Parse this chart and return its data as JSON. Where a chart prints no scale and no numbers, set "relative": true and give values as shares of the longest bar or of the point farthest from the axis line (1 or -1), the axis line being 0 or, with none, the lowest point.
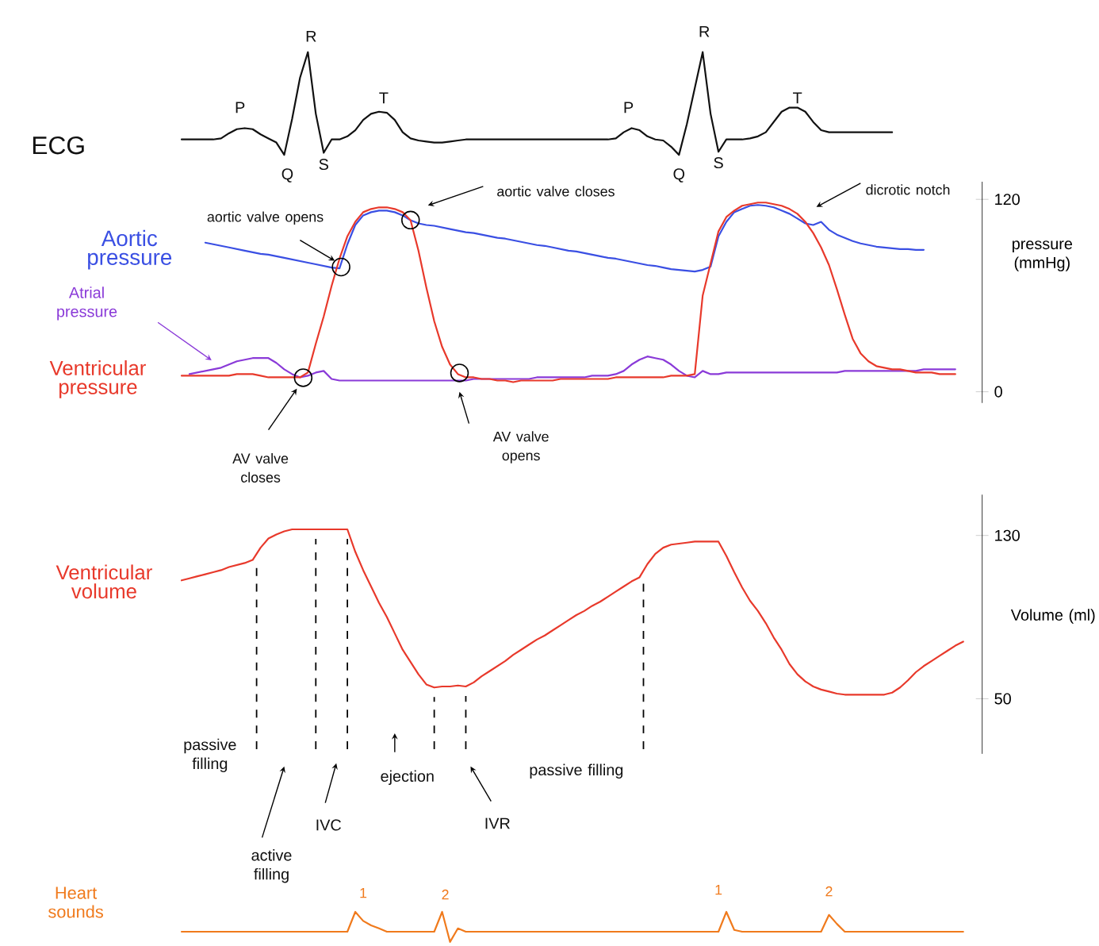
{
  "chart_data": [
    {
      "type": "line",
      "relative": true,
      "categories": [
        null,
        null,
        null,
        null,
        null,
        null,
        null,
        null,
        null,
        null,
        null,
        null,
        null,
        null,
        null,
        null,
        null,
        null,
        null,
        null,
        null,
        null,
        null,
        null,
        null,
        null,
        null,
        null,
        null,
        null,
        null,
        null,
        null,
        null,
        null,
        null,
        null,
        null,
        null,
        null,
        null,
        null,
        null,
        null,
        null,
        null,
        null,
        null,
        null,
        null,
        null,
        null,
        null,
        null,
        null,
        null,
        null,
        null,
        null,
        null,
        null,
        null,
        null,
        null,
        null,
        null,
        null,
        null,
        null,
        null,
        null,
        null,
        null,
        null,
        null,
        null,
        null,
        null,
        null,
        null,
        null,
        null,
        null,
        null,
        null,
        null,
        null,
        null,
        null,
        null,
        null,
        null,
        null,
        null,
        null,
        null,
        null,
        null,
        null,
        null,
        null
      ],
      "series": [
        {
          "name": "ECG",
          "color": "#111111",
          "values": [
            null,
            0.15,
            0.15,
            0.15,
            0.15,
            0.15,
            0.16,
            0.21,
            0.25,
            0.26,
            0.25,
            0.2,
            0.16,
            0.12,
            0,
            0.35,
            0.75,
            1,
            0.4,
            0.02,
            0.15,
            0.15,
            0.18,
            0.24,
            0.34,
            0.4,
            0.42,
            0.41,
            0.34,
            0.22,
            0.16,
            0.14,
            0.13,
            0.12,
            0.12,
            0.13,
            0.14,
            0.15,
            0.15,
            0.15,
            0.15,
            0.15,
            0.15,
            0.15,
            0.15,
            0.15,
            0.15,
            0.15,
            0.15,
            0.15,
            0.15,
            0.15,
            0.15,
            0.15,
            0.15,
            0.15,
            0.16,
            0.22,
            0.26,
            0.24,
            0.18,
            0.15,
            0.14,
            0.08,
            0,
            0.3,
            0.65,
            1,
            0.4,
            0.03,
            0.15,
            0.15,
            0.15,
            0.16,
            0.18,
            0.22,
            0.32,
            0.42,
            0.46,
            0.46,
            0.42,
            0.32,
            0.24,
            0.22,
            0.22,
            0.22,
            0.22,
            0.22,
            0.22,
            0.22,
            0.22,
            0.22,
            null,
            null,
            null,
            null,
            null,
            null,
            null,
            null,
            null
          ]
        }
      ],
      "annotations": [
        "P",
        "Q",
        "R",
        "S",
        "T",
        "P",
        "Q",
        "R",
        "S",
        "T"
      ]
    },
    {
      "type": "line",
      "ylim": [
        -7,
        131
      ],
      "yticks": [
        0,
        120
      ],
      "ylabel": "pressure (mmHg)",
      "tick_labels": "y",
      "categories": [
        null,
        null,
        null,
        null,
        null,
        null,
        null,
        null,
        null,
        null,
        null,
        null,
        null,
        null,
        null,
        null,
        null,
        null,
        null,
        null,
        null,
        null,
        null,
        null,
        null,
        null,
        null,
        null,
        null,
        null,
        null,
        null,
        null,
        null,
        null,
        null,
        null,
        null,
        null,
        null,
        null,
        null,
        null,
        null,
        null,
        null,
        null,
        null,
        null,
        null,
        null,
        null,
        null,
        null,
        null,
        null,
        null,
        null,
        null,
        null,
        null,
        null,
        null,
        null,
        null,
        null,
        null,
        null,
        null,
        null,
        null,
        null,
        null,
        null,
        null,
        null,
        null,
        null,
        null,
        null,
        null,
        null,
        null,
        null,
        null,
        null,
        null,
        null,
        null,
        null,
        null,
        null,
        null,
        null,
        null,
        null,
        null,
        null,
        null,
        null,
        null
      ],
      "series": [
        {
          "name": "Aortic pressure",
          "color": "#3a4fe3",
          "values": [
            null,
            null,
            null,
            null,
            93,
            92,
            91,
            90,
            89,
            88,
            87,
            86,
            85.5,
            84.5,
            83.5,
            82.5,
            81.5,
            80.5,
            79.5,
            78.5,
            77.5,
            77,
            92,
            104,
            110,
            112,
            113,
            113,
            112,
            110,
            107,
            105,
            104,
            103.5,
            102.5,
            101.5,
            100.5,
            99.5,
            99,
            98,
            97,
            96,
            95.5,
            94.5,
            93.5,
            92.5,
            91.5,
            91,
            90,
            89,
            88,
            87.5,
            86.5,
            85.5,
            84.5,
            83.5,
            83,
            82,
            81,
            80,
            79,
            78.5,
            77.5,
            76.5,
            76,
            75.5,
            75,
            76,
            78,
            97,
            106,
            112,
            114,
            116,
            116.5,
            116,
            115,
            113,
            111,
            108,
            105,
            104,
            106,
            101,
            98,
            96,
            94,
            92.5,
            91.5,
            90.5,
            90,
            89.5,
            89,
            89,
            88.5,
            88.5,
            null,
            null,
            null,
            null,
            null
          ]
        },
        {
          "name": "Atrial pressure",
          "color": "#8a3ad8",
          "values": [
            null,
            null,
            11,
            12,
            13,
            14,
            15,
            17,
            19,
            20,
            21,
            21,
            21,
            18,
            14,
            11,
            9,
            10,
            12,
            13,
            8,
            7,
            7,
            7,
            7,
            7,
            7,
            7,
            7,
            7,
            7,
            7,
            7,
            7,
            7,
            7,
            7,
            7,
            8,
            8,
            8,
            8,
            8,
            8,
            8,
            8,
            9,
            9,
            9,
            9,
            9,
            9,
            9,
            10,
            10,
            10,
            11,
            13,
            17,
            20,
            22,
            21,
            20,
            17,
            13,
            10,
            9,
            13,
            11,
            11,
            12,
            12,
            12,
            12,
            12,
            12,
            12,
            12,
            12,
            12,
            12,
            12,
            12,
            12,
            12,
            13,
            13,
            13,
            13,
            13,
            13,
            13,
            13,
            13,
            13,
            14,
            14,
            14,
            14,
            14,
            null
          ]
        },
        {
          "name": "Ventricular pressure",
          "color": "#e8392b",
          "values": [
            null,
            10,
            10,
            10,
            10,
            10,
            10,
            10,
            11,
            11,
            11,
            10,
            9,
            9,
            9,
            9,
            9,
            12,
            30,
            47,
            66,
            83,
            97,
            106,
            112,
            114,
            115,
            115,
            114,
            112,
            107,
            88,
            65,
            44,
            28,
            17,
            11,
            9,
            9,
            8,
            8,
            7,
            7,
            6,
            7,
            7,
            7,
            7,
            7,
            8,
            8,
            8,
            8,
            8,
            8,
            8,
            9,
            9,
            9,
            9,
            9,
            9,
            9,
            10,
            10,
            10,
            11,
            60,
            80,
            100,
            109,
            113,
            116,
            117,
            118,
            118,
            117,
            116,
            114,
            111,
            106,
            99,
            90,
            79,
            64,
            48,
            33,
            24,
            19,
            16,
            15,
            14,
            14,
            13,
            12,
            12,
            12,
            11,
            11,
            11,
            null
          ]
        }
      ],
      "annotations": [
        "aortic valve opens",
        "aortic valve closes",
        "dicrotic notch",
        "AV valve closes",
        "AV valve opens"
      ]
    },
    {
      "type": "line",
      "ylim": [
        23,
        150
      ],
      "yticks": [
        50,
        130
      ],
      "ylabel": "Volume (ml)",
      "tick_labels": "y",
      "categories": [
        null,
        null,
        null,
        null,
        null,
        null,
        null,
        null,
        null,
        null,
        null,
        null,
        null,
        null,
        null,
        null,
        null,
        null,
        null,
        null,
        null,
        null,
        null,
        null,
        null,
        null,
        null,
        null,
        null,
        null,
        null,
        null,
        null,
        null,
        null,
        null,
        null,
        null,
        null,
        null,
        null,
        null,
        null,
        null,
        null,
        null,
        null,
        null,
        null,
        null,
        null,
        null,
        null,
        null,
        null,
        null,
        null,
        null,
        null,
        null,
        null,
        null,
        null,
        null,
        null,
        null,
        null,
        null,
        null,
        null,
        null,
        null,
        null,
        null,
        null,
        null,
        null,
        null,
        null,
        null,
        null,
        null,
        null,
        null,
        null,
        null,
        null,
        null,
        null,
        null,
        null,
        null,
        null,
        null,
        null,
        null,
        null,
        null,
        null,
        null,
        null
      ],
      "series": [
        {
          "name": "Ventricular volume",
          "color": "#e8392b",
          "values": [
            null,
            108,
            109,
            110,
            111,
            112,
            113,
            114.5,
            115.5,
            116.5,
            118,
            124,
            128.5,
            130.5,
            132,
            133,
            133,
            133,
            133,
            133,
            133,
            133,
            133,
            122,
            113,
            105,
            97,
            90,
            82,
            74,
            68,
            62,
            57,
            55.5,
            56,
            56,
            56.5,
            56,
            58,
            61,
            63.5,
            66,
            68.5,
            71.5,
            74,
            76.5,
            79,
            81,
            83.5,
            86,
            88.5,
            91,
            93,
            95.5,
            97.5,
            100,
            102.5,
            105,
            107.5,
            109.5,
            116,
            121,
            124,
            125.5,
            126,
            126.5,
            127,
            127,
            127,
            127,
            120,
            112,
            104.5,
            98,
            93,
            87,
            80,
            74,
            67,
            62,
            58.5,
            56,
            54.5,
            53.5,
            52.5,
            52,
            52,
            52,
            52,
            52,
            52,
            53,
            55.5,
            59,
            63,
            66,
            68.5,
            71,
            73.5,
            76,
            78
          ]
        }
      ],
      "annotations": [
        "passive filling",
        "active filling",
        "IVC",
        "ejection",
        "IVR",
        "passive filling"
      ]
    },
    {
      "type": "line",
      "relative": true,
      "categories": [
        null,
        null,
        null,
        null,
        null,
        null,
        null,
        null,
        null,
        null,
        null,
        null,
        null,
        null,
        null,
        null,
        null,
        null,
        null,
        null,
        null,
        null,
        null,
        null,
        null,
        null,
        null,
        null,
        null,
        null,
        null,
        null,
        null,
        null,
        null,
        null,
        null,
        null,
        null,
        null,
        null,
        null,
        null,
        null,
        null,
        null,
        null,
        null,
        null,
        null,
        null,
        null,
        null,
        null,
        null,
        null,
        null,
        null,
        null,
        null,
        null,
        null,
        null,
        null,
        null,
        null,
        null,
        null,
        null,
        null,
        null,
        null,
        null,
        null,
        null,
        null,
        null,
        null,
        null,
        null,
        null,
        null,
        null,
        null,
        null,
        null,
        null,
        null,
        null,
        null,
        null,
        null,
        null,
        null,
        null,
        null,
        null,
        null,
        null,
        null,
        null
      ],
      "series": [
        {
          "name": "Heart sounds",
          "color": "#f07a1c",
          "values": [
            null,
            0.34,
            0.34,
            0.34,
            0.34,
            0.34,
            0.34,
            0.34,
            0.34,
            0.34,
            0.34,
            0.34,
            0.34,
            0.34,
            0.34,
            0.34,
            0.34,
            0.34,
            0.34,
            0.34,
            0.34,
            0.34,
            0.34,
            1,
            0.7,
            0.55,
            0.45,
            0.34,
            0.34,
            0.34,
            0.34,
            0.34,
            0.34,
            0.34,
            1,
            0,
            0.45,
            0.34,
            0.34,
            0.34,
            0.34,
            0.34,
            0.34,
            0.34,
            0.34,
            0.34,
            0.34,
            0.34,
            0.34,
            0.34,
            0.34,
            0.34,
            0.34,
            0.34,
            0.34,
            0.34,
            0.34,
            0.34,
            0.34,
            0.34,
            0.34,
            0.34,
            0.34,
            0.34,
            0.34,
            0.34,
            0.34,
            0.34,
            0.34,
            0.34,
            1,
            0.4,
            0.34,
            0.34,
            0.34,
            0.34,
            0.34,
            0.34,
            0.34,
            0.34,
            0.34,
            0.34,
            0.34,
            0.9,
            0.6,
            0.34,
            0.34,
            0.34,
            0.34,
            0.34,
            0.34,
            0.34,
            0.34,
            0.34,
            0.34,
            0.34,
            0.34,
            0.34,
            0.34,
            0.34,
            0.34
          ]
        }
      ],
      "annotations": [
        "1",
        "2",
        "1",
        "2"
      ]
    }
  ]
}
